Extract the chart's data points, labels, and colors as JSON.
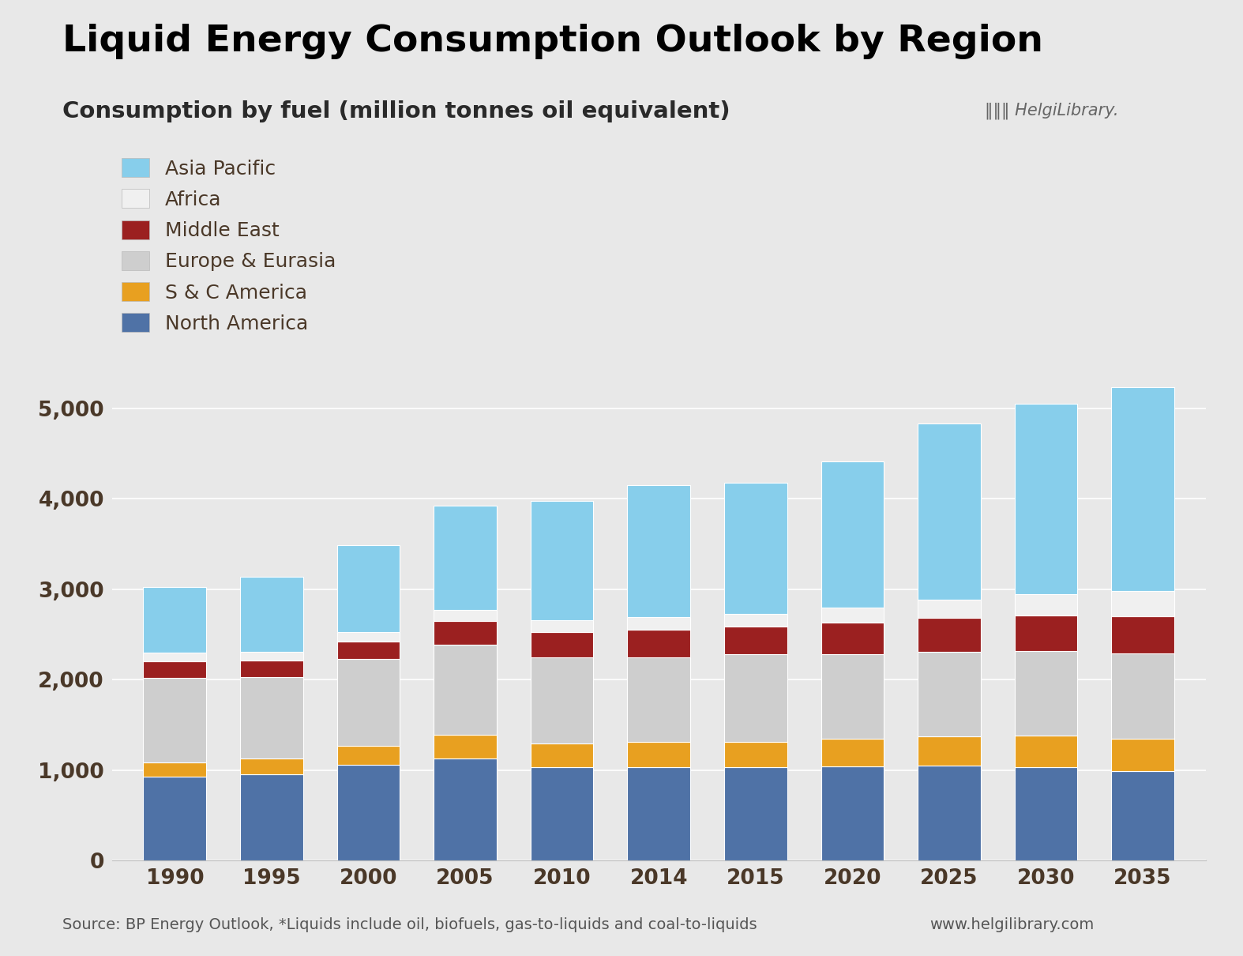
{
  "title": "Liquid Energy Consumption Outlook by Region",
  "subtitle": "Consumption by fuel (million tonnes oil equivalent)",
  "source_text": "Source: BP Energy Outlook, *Liquids include oil, biofuels, gas-to-liquids and coal-to-liquids",
  "source_url": "www.helgilibrary.com",
  "years": [
    1990,
    1995,
    2000,
    2005,
    2010,
    2014,
    2015,
    2020,
    2025,
    2030,
    2035
  ],
  "regions": [
    "North America",
    "S & C America",
    "Europe & Eurasia",
    "Middle East",
    "Africa",
    "Asia Pacific"
  ],
  "colors": [
    "#4F72A6",
    "#E8A020",
    "#CECECE",
    "#9B2020",
    "#F0F0F0",
    "#87CEEB"
  ],
  "data": {
    "North America": [
      930,
      950,
      1055,
      1125,
      1030,
      1030,
      1030,
      1040,
      1045,
      1035,
      990
    ],
    "S & C America": [
      155,
      175,
      215,
      265,
      265,
      280,
      285,
      305,
      330,
      345,
      355
    ],
    "Europe & Eurasia": [
      930,
      900,
      955,
      995,
      955,
      940,
      965,
      935,
      935,
      935,
      945
    ],
    "Middle East": [
      185,
      190,
      200,
      265,
      280,
      305,
      305,
      355,
      375,
      395,
      415
    ],
    "Africa": [
      95,
      95,
      105,
      120,
      130,
      135,
      140,
      165,
      200,
      240,
      275
    ],
    "Asia Pacific": [
      730,
      830,
      960,
      1155,
      1320,
      1460,
      1450,
      1615,
      1950,
      2105,
      2260
    ]
  },
  "ylim": [
    0,
    5500
  ],
  "yticks": [
    0,
    1000,
    2000,
    3000,
    4000,
    5000
  ],
  "background_color": "#E8E8E8",
  "bar_width": 0.65,
  "title_fontsize": 34,
  "subtitle_fontsize": 21,
  "tick_label_color": "#4A3828",
  "axis_tick_fontsize": 19,
  "legend_fontsize": 18,
  "source_fontsize": 14
}
